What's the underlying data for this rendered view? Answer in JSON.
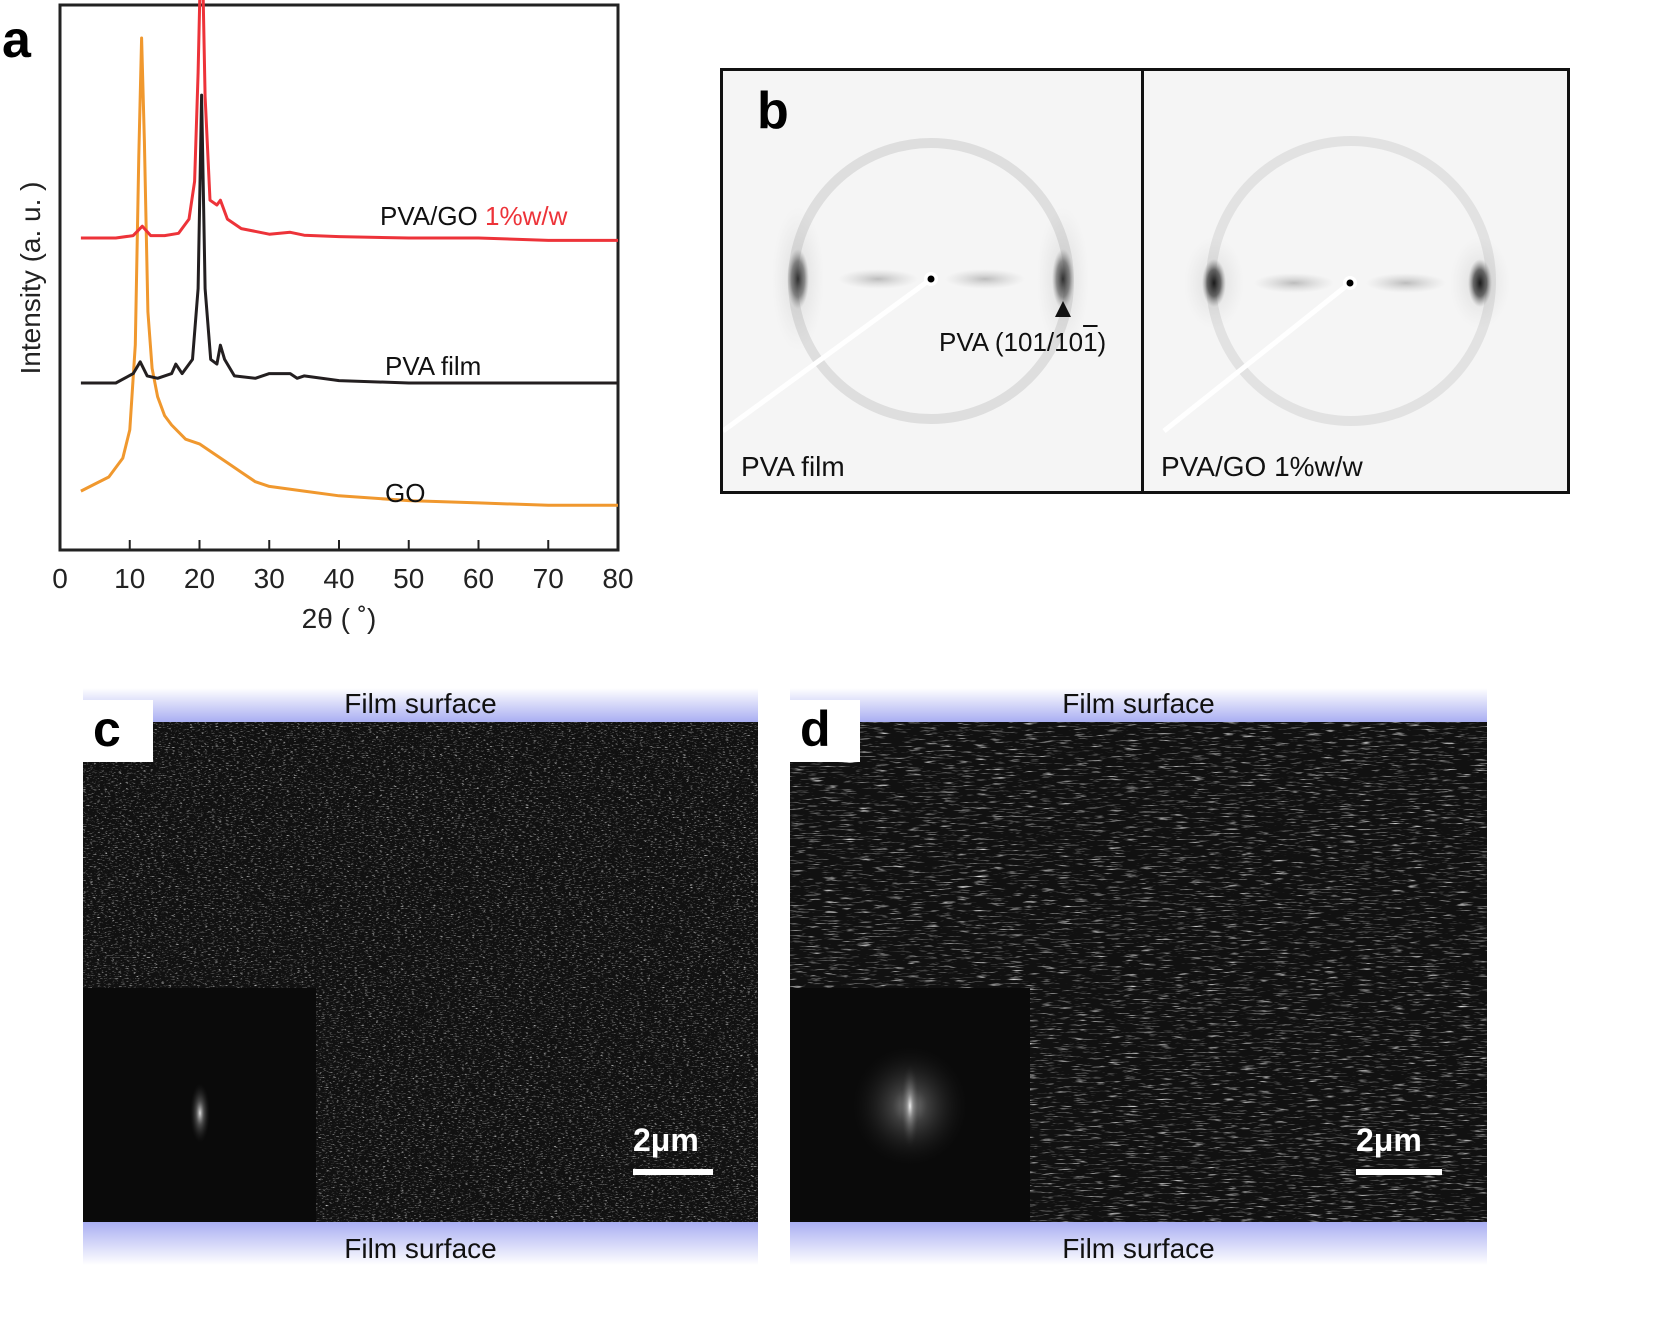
{
  "panel_a": {
    "letter": "a",
    "chart_data": {
      "type": "line",
      "xlabel": "2θ ( ˚)",
      "ylabel": "Intensity (a. u. )",
      "xlim": [
        0,
        80
      ],
      "xticks": [
        0,
        10,
        20,
        30,
        40,
        50,
        60,
        70,
        80
      ],
      "grid": false,
      "series": [
        {
          "name": "GO",
          "color": "#f0982e",
          "label_parts": [
            "GO"
          ],
          "x": [
            3,
            5,
            7,
            9,
            10,
            10.8,
            11.3,
            11.7,
            12.1,
            12.6,
            13.2,
            14,
            15,
            16,
            18,
            20,
            22,
            24,
            26,
            28,
            30,
            35,
            40,
            50,
            60,
            70,
            80
          ],
          "y": [
            0.04,
            0.055,
            0.07,
            0.11,
            0.17,
            0.35,
            0.75,
            1.0,
            0.78,
            0.42,
            0.3,
            0.24,
            0.2,
            0.18,
            0.15,
            0.14,
            0.12,
            0.1,
            0.08,
            0.06,
            0.05,
            0.04,
            0.03,
            0.02,
            0.015,
            0.01,
            0.01
          ]
        },
        {
          "name": "PVA film",
          "color": "#231f20",
          "label_parts": [
            "PVA film"
          ],
          "x": [
            3,
            8,
            10.5,
            11.5,
            12.5,
            14,
            16,
            16.6,
            17.5,
            19,
            19.8,
            20.3,
            20.8,
            21.6,
            22.5,
            23,
            23.6,
            25,
            28,
            30,
            33,
            34,
            35,
            40,
            50,
            60,
            70,
            80
          ],
          "y": [
            0.0,
            0.0,
            0.02,
            0.045,
            0.015,
            0.01,
            0.02,
            0.04,
            0.02,
            0.05,
            0.2,
            0.61,
            0.2,
            0.05,
            0.04,
            0.08,
            0.05,
            0.015,
            0.01,
            0.02,
            0.02,
            0.01,
            0.015,
            0.005,
            0.0,
            0.0,
            0.0,
            0.0
          ]
        },
        {
          "name": "PVA/GO 1%w/w",
          "color": "#ed3339",
          "label_parts": [
            "PVA/GO ",
            "1%w/w"
          ],
          "label_colors": [
            "#111111",
            "#ed3339"
          ],
          "x": [
            3,
            8,
            10.5,
            11.8,
            13,
            15,
            17,
            18.5,
            19.3,
            19.8,
            20.3,
            20.8,
            21.5,
            22.5,
            23,
            24,
            26,
            30,
            33,
            35,
            40,
            50,
            60,
            70,
            80
          ],
          "y": [
            0.0,
            0.0,
            0.005,
            0.025,
            0.005,
            0.005,
            0.01,
            0.04,
            0.12,
            0.35,
            0.68,
            0.3,
            0.08,
            0.07,
            0.08,
            0.04,
            0.02,
            0.008,
            0.012,
            0.006,
            0.003,
            0.0,
            0.0,
            -0.005,
            -0.005
          ]
        }
      ]
    }
  },
  "panel_b": {
    "letter": "b",
    "left_label": "PVA film",
    "right_label": "PVA/GO 1%w/w",
    "annotation": "PVA (101/10",
    "annotation_bar_digit": "1",
    "annotation_close": ")"
  },
  "panel_c": {
    "letter": "c",
    "top_label": "Film surface",
    "bottom_label": "Film surface",
    "scale_bar": "2μm"
  },
  "panel_d": {
    "letter": "d",
    "top_label": "Film surface",
    "bottom_label": "Film surface",
    "scale_bar": "2μm"
  }
}
